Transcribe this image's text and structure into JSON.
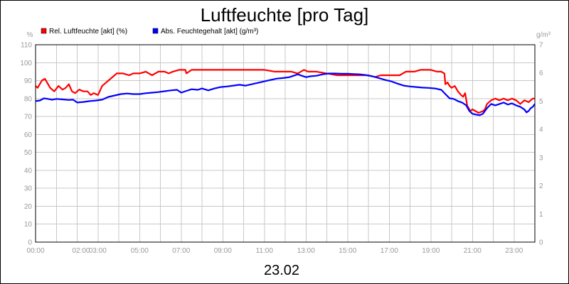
{
  "chart_data": {
    "type": "line",
    "title": "Luftfeuchte [pro Tag]",
    "xlabel": "23.02",
    "y_left_unit": "%",
    "y_right_unit": "g/m³",
    "x_ticks": [
      "00:00",
      "02:00",
      "03:00",
      "05:00",
      "07:00",
      "09:00",
      "11:00",
      "13:00",
      "15:00",
      "17:00",
      "19:00",
      "21:00",
      "23:00"
    ],
    "x_tick_hours": [
      0,
      2,
      3,
      5,
      7,
      9,
      11,
      13,
      15,
      17,
      19,
      21,
      23
    ],
    "xlim": [
      0,
      24
    ],
    "ylim_left": [
      0,
      110
    ],
    "ylim_right": [
      0,
      7
    ],
    "y_left_ticks": [
      0,
      10,
      20,
      30,
      40,
      50,
      60,
      70,
      80,
      90,
      100,
      110
    ],
    "y_right_ticks": [
      0,
      1,
      2,
      3,
      4,
      5,
      6,
      7
    ],
    "grid": true,
    "legend_position": "top-left",
    "series": [
      {
        "name": "Rel. Luftfeuchte [akt] (%)",
        "color": "#ff0000",
        "axis": "left",
        "points": [
          [
            0,
            87
          ],
          [
            0.1,
            86
          ],
          [
            0.2,
            88
          ],
          [
            0.3,
            90
          ],
          [
            0.45,
            91
          ],
          [
            0.55,
            89
          ],
          [
            0.7,
            86
          ],
          [
            0.9,
            84
          ],
          [
            1.1,
            87
          ],
          [
            1.3,
            85
          ],
          [
            1.45,
            86
          ],
          [
            1.6,
            88
          ],
          [
            1.75,
            84
          ],
          [
            1.9,
            83
          ],
          [
            2.1,
            85
          ],
          [
            2.3,
            84
          ],
          [
            2.5,
            84
          ],
          [
            2.65,
            82
          ],
          [
            2.8,
            83
          ],
          [
            3.0,
            82
          ],
          [
            3.2,
            87
          ],
          [
            3.4,
            89
          ],
          [
            3.6,
            91
          ],
          [
            3.9,
            94
          ],
          [
            4.2,
            94
          ],
          [
            4.5,
            93
          ],
          [
            4.7,
            94
          ],
          [
            5.0,
            94
          ],
          [
            5.3,
            95
          ],
          [
            5.6,
            93
          ],
          [
            5.9,
            95
          ],
          [
            6.2,
            95
          ],
          [
            6.4,
            94
          ],
          [
            6.6,
            95
          ],
          [
            6.9,
            96
          ],
          [
            7.2,
            96
          ],
          [
            7.25,
            94
          ],
          [
            7.5,
            96
          ],
          [
            8.0,
            96
          ],
          [
            8.5,
            96
          ],
          [
            9.0,
            96
          ],
          [
            9.5,
            96
          ],
          [
            10.0,
            96
          ],
          [
            10.5,
            96
          ],
          [
            11.0,
            96
          ],
          [
            11.5,
            95
          ],
          [
            12.0,
            95
          ],
          [
            12.3,
            95
          ],
          [
            12.6,
            94
          ],
          [
            12.9,
            96
          ],
          [
            13.1,
            95
          ],
          [
            13.5,
            95
          ],
          [
            14.0,
            94
          ],
          [
            14.5,
            93
          ],
          [
            15.0,
            93
          ],
          [
            15.5,
            93
          ],
          [
            16.0,
            93
          ],
          [
            16.3,
            92
          ],
          [
            16.6,
            93
          ],
          [
            17.0,
            93
          ],
          [
            17.5,
            93
          ],
          [
            17.8,
            95
          ],
          [
            18.2,
            95
          ],
          [
            18.5,
            96
          ],
          [
            19.0,
            96
          ],
          [
            19.3,
            95
          ],
          [
            19.5,
            95
          ],
          [
            19.65,
            94
          ],
          [
            19.7,
            88
          ],
          [
            19.8,
            89
          ],
          [
            19.9,
            87
          ],
          [
            20.0,
            86
          ],
          [
            20.15,
            87
          ],
          [
            20.3,
            84
          ],
          [
            20.45,
            82
          ],
          [
            20.55,
            81
          ],
          [
            20.65,
            83
          ],
          [
            20.75,
            76
          ],
          [
            20.9,
            73
          ],
          [
            21.0,
            74
          ],
          [
            21.15,
            73
          ],
          [
            21.3,
            72
          ],
          [
            21.5,
            73
          ],
          [
            21.6,
            74
          ],
          [
            21.7,
            77
          ],
          [
            21.9,
            79
          ],
          [
            22.1,
            80
          ],
          [
            22.3,
            79
          ],
          [
            22.5,
            80
          ],
          [
            22.7,
            79
          ],
          [
            22.9,
            80
          ],
          [
            23.1,
            79
          ],
          [
            23.3,
            77
          ],
          [
            23.5,
            79
          ],
          [
            23.7,
            78
          ],
          [
            23.8,
            79
          ],
          [
            23.9,
            80
          ],
          [
            24.0,
            80
          ]
        ]
      },
      {
        "name": "Abs. Feuchtegehalt [akt] (g/m³)",
        "color": "#0000ff",
        "axis": "right",
        "points": [
          [
            0,
            5.0
          ],
          [
            0.2,
            5.02
          ],
          [
            0.4,
            5.1
          ],
          [
            0.6,
            5.08
          ],
          [
            0.8,
            5.05
          ],
          [
            1.0,
            5.08
          ],
          [
            1.3,
            5.06
          ],
          [
            1.6,
            5.04
          ],
          [
            1.8,
            5.05
          ],
          [
            2.0,
            4.95
          ],
          [
            2.3,
            4.97
          ],
          [
            2.6,
            5.0
          ],
          [
            2.9,
            5.02
          ],
          [
            3.2,
            5.05
          ],
          [
            3.5,
            5.15
          ],
          [
            3.8,
            5.2
          ],
          [
            4.1,
            5.25
          ],
          [
            4.4,
            5.27
          ],
          [
            4.7,
            5.25
          ],
          [
            5.0,
            5.25
          ],
          [
            5.3,
            5.28
          ],
          [
            5.6,
            5.3
          ],
          [
            5.9,
            5.32
          ],
          [
            6.2,
            5.35
          ],
          [
            6.5,
            5.38
          ],
          [
            6.8,
            5.4
          ],
          [
            7.0,
            5.3
          ],
          [
            7.2,
            5.35
          ],
          [
            7.5,
            5.42
          ],
          [
            7.8,
            5.4
          ],
          [
            8.0,
            5.45
          ],
          [
            8.3,
            5.38
          ],
          [
            8.6,
            5.45
          ],
          [
            8.9,
            5.5
          ],
          [
            9.2,
            5.52
          ],
          [
            9.5,
            5.55
          ],
          [
            9.8,
            5.58
          ],
          [
            10.1,
            5.55
          ],
          [
            10.4,
            5.6
          ],
          [
            10.7,
            5.65
          ],
          [
            11.0,
            5.7
          ],
          [
            11.3,
            5.75
          ],
          [
            11.6,
            5.8
          ],
          [
            11.9,
            5.82
          ],
          [
            12.2,
            5.85
          ],
          [
            12.4,
            5.9
          ],
          [
            12.6,
            5.95
          ],
          [
            12.8,
            5.9
          ],
          [
            13.0,
            5.85
          ],
          [
            13.2,
            5.88
          ],
          [
            13.5,
            5.9
          ],
          [
            13.8,
            5.95
          ],
          [
            14.1,
            5.98
          ],
          [
            14.4,
            5.98
          ],
          [
            14.7,
            5.97
          ],
          [
            15.0,
            5.97
          ],
          [
            15.3,
            5.96
          ],
          [
            15.6,
            5.95
          ],
          [
            15.9,
            5.92
          ],
          [
            16.2,
            5.88
          ],
          [
            16.5,
            5.82
          ],
          [
            16.8,
            5.75
          ],
          [
            17.1,
            5.7
          ],
          [
            17.4,
            5.62
          ],
          [
            17.7,
            5.55
          ],
          [
            18.0,
            5.52
          ],
          [
            18.3,
            5.5
          ],
          [
            18.6,
            5.48
          ],
          [
            18.9,
            5.47
          ],
          [
            19.2,
            5.45
          ],
          [
            19.5,
            5.4
          ],
          [
            19.7,
            5.25
          ],
          [
            19.9,
            5.1
          ],
          [
            20.1,
            5.08
          ],
          [
            20.3,
            5.0
          ],
          [
            20.5,
            4.95
          ],
          [
            20.7,
            4.85
          ],
          [
            20.85,
            4.65
          ],
          [
            21.0,
            4.55
          ],
          [
            21.2,
            4.52
          ],
          [
            21.35,
            4.5
          ],
          [
            21.5,
            4.55
          ],
          [
            21.7,
            4.75
          ],
          [
            21.9,
            4.9
          ],
          [
            22.1,
            4.85
          ],
          [
            22.3,
            4.9
          ],
          [
            22.5,
            4.95
          ],
          [
            22.7,
            4.88
          ],
          [
            22.9,
            4.92
          ],
          [
            23.1,
            4.85
          ],
          [
            23.3,
            4.8
          ],
          [
            23.5,
            4.7
          ],
          [
            23.6,
            4.6
          ],
          [
            23.7,
            4.65
          ],
          [
            23.8,
            4.75
          ],
          [
            23.9,
            4.8
          ],
          [
            24.0,
            4.9
          ]
        ]
      }
    ]
  }
}
